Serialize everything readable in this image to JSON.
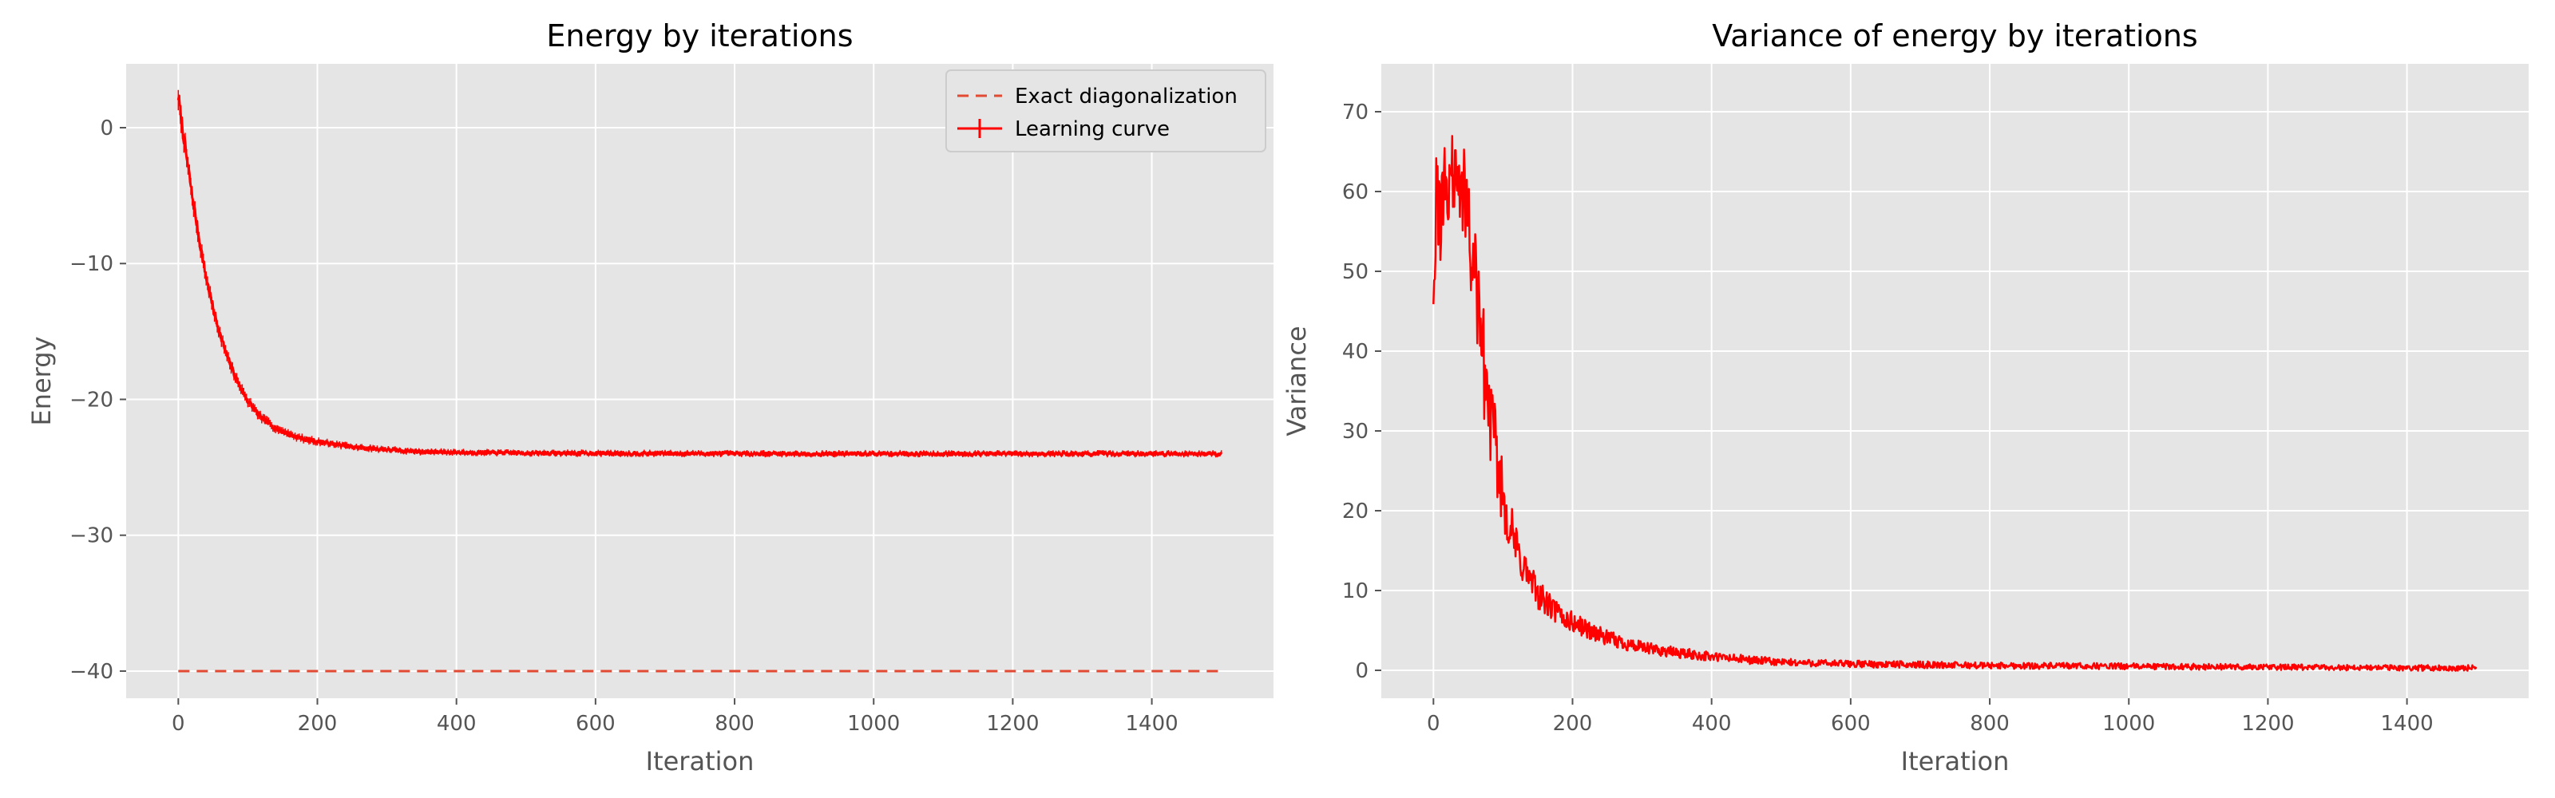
{
  "colors": {
    "axes_bg": "#e5e5e5",
    "grid": "#ffffff",
    "curve": "#ff0000",
    "exact": "#e24a33",
    "tick_text": "#555555"
  },
  "chart_data": [
    {
      "type": "line",
      "title": "Energy by iterations",
      "xlabel": "Iteration",
      "ylabel": "Energy",
      "xlim": [
        -75,
        1575
      ],
      "ylim": [
        -42,
        4.7
      ],
      "xticks": [
        0,
        200,
        400,
        600,
        800,
        1000,
        1200,
        1400
      ],
      "xtick_labels": [
        "0",
        "200",
        "400",
        "600",
        "800",
        "1000",
        "1200",
        "1400"
      ],
      "yticks": [
        0,
        -10,
        -20,
        -30,
        -40
      ],
      "ytick_labels": [
        "0",
        "−10",
        "−20",
        "−30",
        "−40"
      ],
      "grid": true,
      "legend_position": "upper right",
      "legend": [
        "Exact diagonalization",
        "Learning curve"
      ],
      "series": [
        {
          "name": "Exact diagonalization",
          "style": "dashed",
          "x": [
            0,
            1500
          ],
          "y": [
            -40,
            -40
          ]
        },
        {
          "name": "Learning curve",
          "style": "solid-with-errorbars",
          "x": [
            0,
            10,
            20,
            30,
            40,
            50,
            60,
            70,
            80,
            90,
            100,
            120,
            140,
            160,
            180,
            200,
            250,
            300,
            350,
            400,
            500,
            600,
            700,
            800,
            900,
            1000,
            1100,
            1200,
            1300,
            1400,
            1500
          ],
          "y": [
            2.3,
            -1.5,
            -5.0,
            -8.2,
            -11.0,
            -13.3,
            -15.2,
            -16.8,
            -18.1,
            -19.2,
            -20.1,
            -21.4,
            -22.1,
            -22.6,
            -22.9,
            -23.1,
            -23.5,
            -23.7,
            -23.85,
            -23.9,
            -23.95,
            -23.97,
            -23.98,
            -23.99,
            -24.0,
            -24.0,
            -24.0,
            -24.0,
            -24.0,
            -24.0,
            -24.0
          ]
        }
      ]
    },
    {
      "type": "line",
      "title": "Variance of energy by iterations",
      "xlabel": "Iteration",
      "ylabel": "Variance",
      "xlim": [
        -75,
        1575
      ],
      "ylim": [
        -3.5,
        76
      ],
      "xticks": [
        0,
        200,
        400,
        600,
        800,
        1000,
        1200,
        1400
      ],
      "xtick_labels": [
        "0",
        "200",
        "400",
        "600",
        "800",
        "1000",
        "1200",
        "1400"
      ],
      "yticks": [
        0,
        10,
        20,
        30,
        40,
        50,
        60,
        70
      ],
      "ytick_labels": [
        "0",
        "10",
        "20",
        "30",
        "40",
        "50",
        "60",
        "70"
      ],
      "grid": true,
      "series": [
        {
          "style": "solid-noisy",
          "x": [
            0,
            5,
            10,
            15,
            20,
            25,
            30,
            35,
            40,
            45,
            50,
            55,
            60,
            65,
            70,
            80,
            90,
            100,
            110,
            120,
            140,
            160,
            180,
            200,
            250,
            300,
            350,
            400,
            500,
            600,
            800,
            1000,
            1200,
            1400,
            1500
          ],
          "y": [
            50,
            60,
            55,
            62,
            58,
            65,
            60,
            63,
            58,
            60,
            56,
            52,
            50,
            45,
            40,
            33,
            27,
            22,
            18,
            15,
            11,
            8.5,
            7,
            6,
            4,
            2.8,
            2.2,
            1.7,
            1.0,
            0.8,
            0.6,
            0.5,
            0.4,
            0.3,
            0.3
          ]
        }
      ]
    }
  ]
}
